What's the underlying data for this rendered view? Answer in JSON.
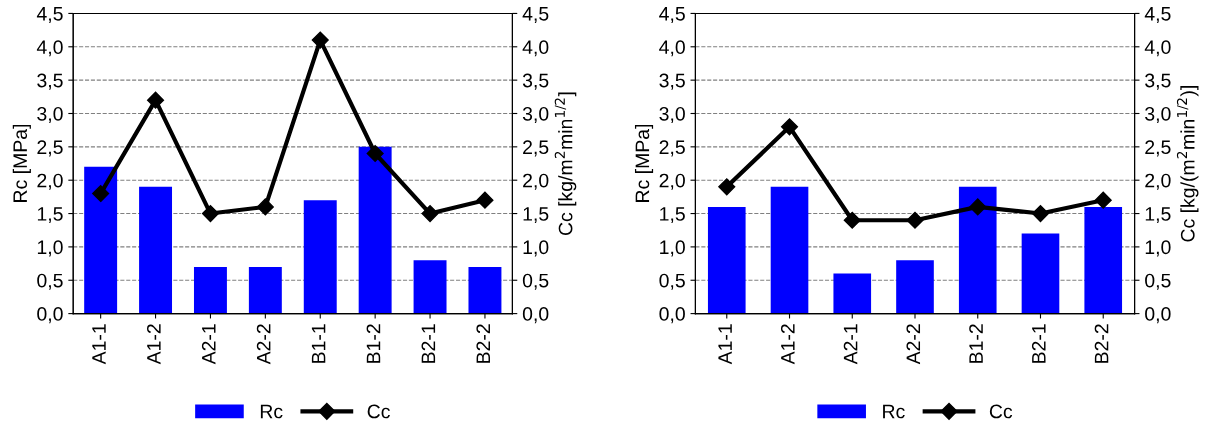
{
  "chart_data": [
    {
      "type": "bar",
      "categories": [
        "A1-1",
        "A1-2",
        "A2-1",
        "A2-2",
        "B1-1",
        "B1-2",
        "B2-1",
        "B2-2"
      ],
      "ylabel": "Rc [MPa]",
      "y2label": "Cc [kg/m$^{2}$min$^{1/2}$]",
      "series": [
        {
          "name": "Rc",
          "color": "#0000ff",
          "values": [
            2.2,
            1.9,
            0.7,
            0.7,
            1.7,
            2.5,
            0.8,
            0.7
          ]
        },
        {
          "name": "Cc",
          "type": "line",
          "axis": "y2",
          "color": "#000000",
          "marker": "diamond",
          "line_style": "solid",
          "values": [
            1.8,
            3.2,
            1.5,
            1.6,
            4.1,
            2.4,
            1.5,
            1.7
          ]
        }
      ],
      "ylim": [
        0,
        4.5
      ],
      "yticks": [
        {
          "value": 0,
          "label": "0,0"
        },
        {
          "value": 0.5,
          "label": "0,5"
        },
        {
          "value": 1,
          "label": "1,0"
        },
        {
          "value": 1.5,
          "label": "1,5"
        },
        {
          "value": 2,
          "label": "2,0"
        },
        {
          "value": 2.5,
          "label": "2,5"
        },
        {
          "value": 3,
          "label": "3,0"
        },
        {
          "value": 3.5,
          "label": "3,5"
        },
        {
          "value": 4,
          "label": "4,0"
        },
        {
          "value": 4.5,
          "label": "4,5"
        }
      ],
      "y2lim": [
        0,
        4.5
      ],
      "y2ticks": [
        {
          "value": 0,
          "label": "0,0"
        },
        {
          "value": 0.5,
          "label": "0,5"
        },
        {
          "value": 1,
          "label": "1,0"
        },
        {
          "value": 1.5,
          "label": "1,5"
        },
        {
          "value": 2,
          "label": "2,0"
        },
        {
          "value": 2.5,
          "label": "2,5"
        },
        {
          "value": 3,
          "label": "3,0"
        },
        {
          "value": 3.5,
          "label": "3,5"
        },
        {
          "value": 4,
          "label": "4,0"
        },
        {
          "value": 4.5,
          "label": "4,5"
        }
      ],
      "grid": "y",
      "legend": "bottom"
    },
    {
      "type": "bar",
      "categories": [
        "A1-1",
        "A1-2",
        "A2-1",
        "A2-2",
        "B1-2",
        "B2-1",
        "B2-2"
      ],
      "ylabel": "Rc [MPa]",
      "y2label": "Cc [kg/(m$^{2}$min$^{1/2}$)]",
      "series": [
        {
          "name": "Rc",
          "color": "#0000ff",
          "values": [
            1.6,
            1.9,
            0.6,
            0.8,
            1.9,
            1.2,
            1.6
          ]
        },
        {
          "name": "Cc",
          "type": "line",
          "axis": "y2",
          "color": "#000000",
          "marker": "diamond",
          "line_style": "solid",
          "values": [
            1.9,
            2.8,
            1.4,
            1.4,
            1.6,
            1.5,
            1.7
          ]
        }
      ],
      "ylim": [
        0,
        4.5
      ],
      "yticks": [
        {
          "value": 0,
          "label": "0,0"
        },
        {
          "value": 0.5,
          "label": "0,5"
        },
        {
          "value": 1,
          "label": "1,0"
        },
        {
          "value": 1.5,
          "label": "1,5"
        },
        {
          "value": 2,
          "label": "2,0"
        },
        {
          "value": 2.5,
          "label": "2,5"
        },
        {
          "value": 3,
          "label": "3,0"
        },
        {
          "value": 3.5,
          "label": "3,5"
        },
        {
          "value": 4,
          "label": "4,0"
        },
        {
          "value": 4.5,
          "label": "4,5"
        }
      ],
      "y2lim": [
        0,
        4.5
      ],
      "y2ticks": [
        {
          "value": 0,
          "label": "0,0"
        },
        {
          "value": 0.5,
          "label": "0,5"
        },
        {
          "value": 1,
          "label": "1,0"
        },
        {
          "value": 1.5,
          "label": "1,5"
        },
        {
          "value": 2,
          "label": "2,0"
        },
        {
          "value": 2.5,
          "label": "2,5"
        },
        {
          "value": 3,
          "label": "3,0"
        },
        {
          "value": 3.5,
          "label": "3,5"
        },
        {
          "value": 4,
          "label": "4,0"
        },
        {
          "value": 4.5,
          "label": "4,5"
        }
      ],
      "grid": "y",
      "legend": "bottom"
    }
  ]
}
